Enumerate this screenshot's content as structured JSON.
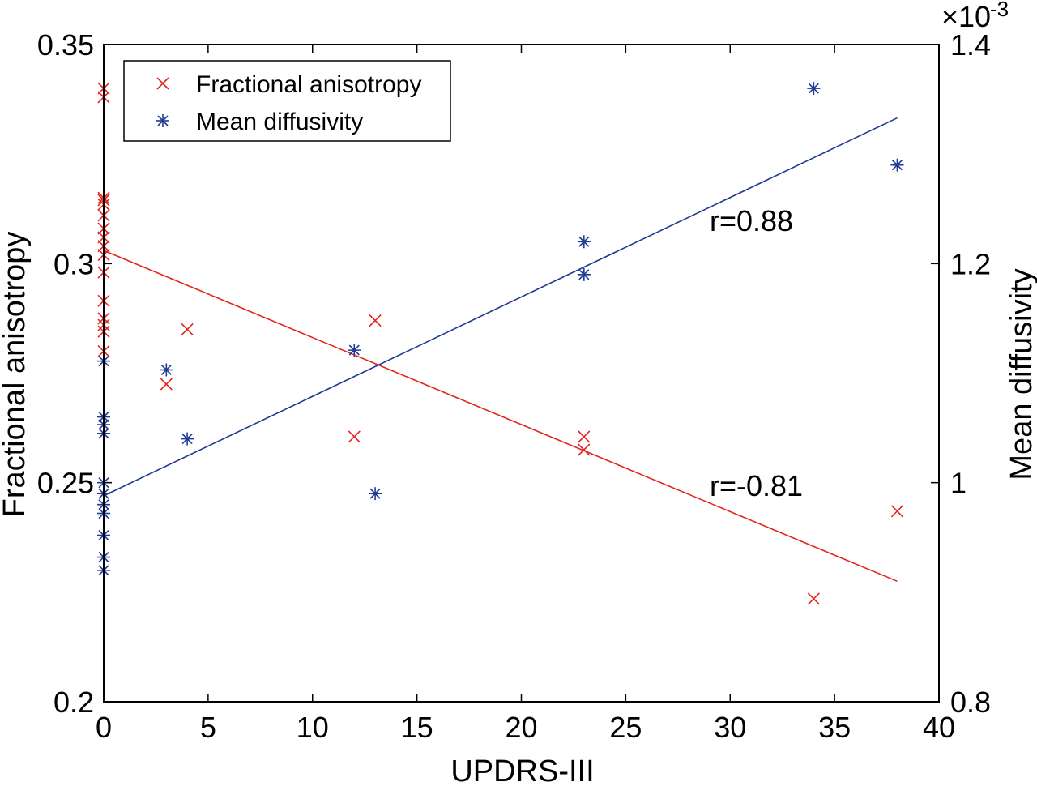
{
  "chart_data": {
    "type": "scatter",
    "xlabel": "UPDRS-III",
    "ylabel_left": "Fractional anisotropy",
    "ylabel_right": "Mean diffusivity",
    "right_axis_multiplier_label": "×10",
    "right_axis_multiplier_exp": "-3",
    "xlim": [
      0,
      40
    ],
    "ylim_left": [
      0.2,
      0.35
    ],
    "ylim_right": [
      0.8,
      1.4
    ],
    "x_ticks": [
      "0",
      "5",
      "10",
      "15",
      "20",
      "25",
      "30",
      "35",
      "40"
    ],
    "y_left_ticks": [
      "0.2",
      "0.25",
      "0.3",
      "0.35"
    ],
    "y_right_ticks": [
      "0.8",
      "1",
      "1.2",
      "1.4"
    ],
    "grid": false,
    "legend_position": "top-left",
    "series": [
      {
        "name": "Fractional anisotropy",
        "axis": "left",
        "marker": "x",
        "color": "#e3241e",
        "points": [
          [
            0,
            0.338
          ],
          [
            0,
            0.34
          ],
          [
            0,
            0.315
          ],
          [
            0,
            0.3135
          ],
          [
            0,
            0.3145
          ],
          [
            0,
            0.311
          ],
          [
            0,
            0.308
          ],
          [
            0,
            0.306
          ],
          [
            0,
            0.304
          ],
          [
            0,
            0.302
          ],
          [
            0,
            0.298
          ],
          [
            0,
            0.2915
          ],
          [
            0,
            0.2875
          ],
          [
            0,
            0.286
          ],
          [
            0,
            0.2845
          ],
          [
            0,
            0.28
          ],
          [
            3,
            0.2725
          ],
          [
            4,
            0.285
          ],
          [
            12,
            0.2605
          ],
          [
            13,
            0.287
          ],
          [
            23,
            0.2605
          ],
          [
            23,
            0.2575
          ],
          [
            34,
            0.2235
          ],
          [
            38,
            0.2435
          ]
        ],
        "fit": [
          [
            0,
            0.303
          ],
          [
            38,
            0.2275
          ]
        ],
        "annotation": "r=-0.81"
      },
      {
        "name": "Mean diffusivity",
        "axis": "right",
        "marker": "asterisk",
        "color": "#1f3a93",
        "points": [
          [
            0,
            1.111
          ],
          [
            0,
            1.06
          ],
          [
            0,
            1.053
          ],
          [
            0,
            1.045
          ],
          [
            0,
            1.0
          ],
          [
            0,
            0.99
          ],
          [
            0,
            0.98
          ],
          [
            0,
            0.972
          ],
          [
            0,
            0.952
          ],
          [
            0,
            0.932
          ],
          [
            0,
            0.92
          ],
          [
            3,
            1.103
          ],
          [
            4,
            1.04
          ],
          [
            12,
            1.121
          ],
          [
            13,
            0.99
          ],
          [
            23,
            1.22
          ],
          [
            23,
            1.19
          ],
          [
            34,
            1.36
          ],
          [
            38,
            1.29
          ]
        ],
        "fit": [
          [
            0,
            0.988
          ],
          [
            38,
            1.333
          ]
        ],
        "annotation": "r=0.88"
      }
    ]
  }
}
